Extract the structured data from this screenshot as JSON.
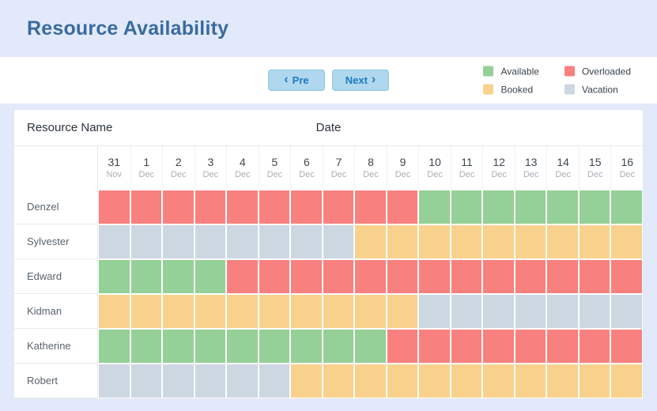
{
  "header": {
    "title": "Resource Availability"
  },
  "toolbar": {
    "prev_label": "Pre",
    "prev_icon": "‹",
    "next_label": "Next",
    "next_icon": "›"
  },
  "legend": {
    "items": [
      {
        "key": "available",
        "label": "Available",
        "color": "#94D097"
      },
      {
        "key": "overloaded",
        "label": "Overloaded",
        "color": "#F8807E"
      },
      {
        "key": "booked",
        "label": "Booked",
        "color": "#F8D28C"
      },
      {
        "key": "vacation",
        "label": "Vacation",
        "color": "#CCD7E2"
      }
    ]
  },
  "table": {
    "resource_col_header": "Resource Name",
    "date_col_header": "Date",
    "dates": [
      {
        "day": "31",
        "month": "Nov"
      },
      {
        "day": "1",
        "month": "Dec"
      },
      {
        "day": "2",
        "month": "Dec"
      },
      {
        "day": "3",
        "month": "Dec"
      },
      {
        "day": "4",
        "month": "Dec"
      },
      {
        "day": "5",
        "month": "Dec"
      },
      {
        "day": "6",
        "month": "Dec"
      },
      {
        "day": "7",
        "month": "Dec"
      },
      {
        "day": "8",
        "month": "Dec"
      },
      {
        "day": "9",
        "month": "Dec"
      },
      {
        "day": "10",
        "month": "Dec"
      },
      {
        "day": "11",
        "month": "Dec"
      },
      {
        "day": "12",
        "month": "Dec"
      },
      {
        "day": "13",
        "month": "Dec"
      },
      {
        "day": "14",
        "month": "Dec"
      },
      {
        "day": "15",
        "month": "Dec"
      },
      {
        "day": "16",
        "month": "Dec"
      }
    ],
    "rows": [
      {
        "name": "Denzel",
        "cells": [
          "overloaded",
          "overloaded",
          "overloaded",
          "overloaded",
          "overloaded",
          "overloaded",
          "overloaded",
          "overloaded",
          "overloaded",
          "overloaded",
          "available",
          "available",
          "available",
          "available",
          "available",
          "available",
          "available"
        ]
      },
      {
        "name": "Sylvester",
        "cells": [
          "vacation",
          "vacation",
          "vacation",
          "vacation",
          "vacation",
          "vacation",
          "vacation",
          "vacation",
          "booked",
          "booked",
          "booked",
          "booked",
          "booked",
          "booked",
          "booked",
          "booked",
          "booked"
        ]
      },
      {
        "name": "Edward",
        "cells": [
          "available",
          "available",
          "available",
          "available",
          "overloaded",
          "overloaded",
          "overloaded",
          "overloaded",
          "overloaded",
          "overloaded",
          "overloaded",
          "overloaded",
          "overloaded",
          "overloaded",
          "overloaded",
          "overloaded",
          "overloaded"
        ]
      },
      {
        "name": "Kidman",
        "cells": [
          "booked",
          "booked",
          "booked",
          "booked",
          "booked",
          "booked",
          "booked",
          "booked",
          "booked",
          "booked",
          "vacation",
          "vacation",
          "vacation",
          "vacation",
          "vacation",
          "vacation",
          "vacation"
        ]
      },
      {
        "name": "Katherine",
        "cells": [
          "available",
          "available",
          "available",
          "available",
          "available",
          "available",
          "available",
          "available",
          "available",
          "overloaded",
          "overloaded",
          "overloaded",
          "overloaded",
          "overloaded",
          "overloaded",
          "overloaded",
          "overloaded"
        ]
      },
      {
        "name": "Robert",
        "cells": [
          "vacation",
          "vacation",
          "vacation",
          "vacation",
          "vacation",
          "vacation",
          "booked",
          "booked",
          "booked",
          "booked",
          "booked",
          "booked",
          "booked",
          "booked",
          "booked",
          "booked",
          "booked"
        ]
      }
    ]
  }
}
